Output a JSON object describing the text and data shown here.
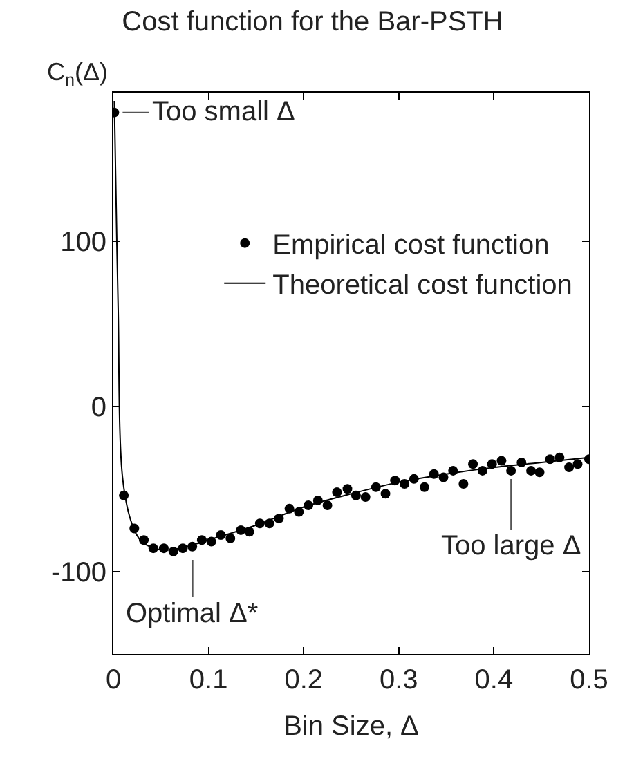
{
  "chart_data": {
    "type": "scatter",
    "title": "Cost function for the Bar-PSTH",
    "xlabel": "Bin Size, Δ",
    "ylabel": "C$_{n}$(Δ)",
    "xlim": [
      0,
      0.5
    ],
    "xticks": [
      0,
      0.1,
      0.2,
      0.3,
      0.4,
      0.5
    ],
    "ylim": [
      -150,
      190
    ],
    "yticks": [
      -100,
      0,
      100
    ],
    "grid": false,
    "legend": "top right",
    "series": [
      {
        "name": "Empirical cost function",
        "marker": "circle",
        "color": "#000000",
        "x": [
          0.001,
          0.011,
          0.022,
          0.032,
          0.042,
          0.053,
          0.063,
          0.073,
          0.083,
          0.093,
          0.103,
          0.113,
          0.123,
          0.134,
          0.143,
          0.154,
          0.164,
          0.174,
          0.185,
          0.195,
          0.205,
          0.215,
          0.225,
          0.235,
          0.246,
          0.255,
          0.265,
          0.276,
          0.286,
          0.296,
          0.306,
          0.316,
          0.327,
          0.337,
          0.347,
          0.357,
          0.368,
          0.378,
          0.388,
          0.398,
          0.408,
          0.418,
          0.429,
          0.439,
          0.448,
          0.459,
          0.469,
          0.479,
          0.488,
          0.5
        ],
        "values": [
          178,
          -54,
          -74,
          -81,
          -86,
          -86,
          -88,
          -86,
          -85,
          -81,
          -82,
          -78,
          -80,
          -75,
          -76,
          -71,
          -71,
          -68,
          -62,
          -64,
          -60,
          -57,
          -60,
          -52,
          -50,
          -54,
          -55,
          -49,
          -53,
          -45,
          -47,
          -44,
          -49,
          -41,
          -43,
          -39,
          -47,
          -35,
          -39,
          -35,
          -33,
          -39,
          -34,
          -39,
          -40,
          -32,
          -31,
          -37,
          -35,
          -32
        ]
      },
      {
        "name": "Theoretical cost function",
        "type": "line",
        "line_style": "solid",
        "color": "#000000",
        "x": [
          0.001,
          0.003,
          0.005,
          0.01,
          0.02,
          0.03,
          0.05,
          0.07,
          0.1,
          0.15,
          0.2,
          0.25,
          0.3,
          0.35,
          0.4,
          0.45,
          0.5
        ],
        "values": [
          185,
          120,
          60,
          -45,
          -72,
          -82,
          -87,
          -86,
          -81,
          -72,
          -61,
          -53,
          -46,
          -41,
          -37,
          -34,
          -31
        ]
      }
    ],
    "annotations": [
      {
        "text": "Too small Δ",
        "x": 0.001,
        "y": 178
      },
      {
        "text": "Optimal Δ*",
        "x": 0.063,
        "y": -88
      },
      {
        "text": "Too large Δ",
        "x": 0.418,
        "y": -39
      }
    ]
  }
}
